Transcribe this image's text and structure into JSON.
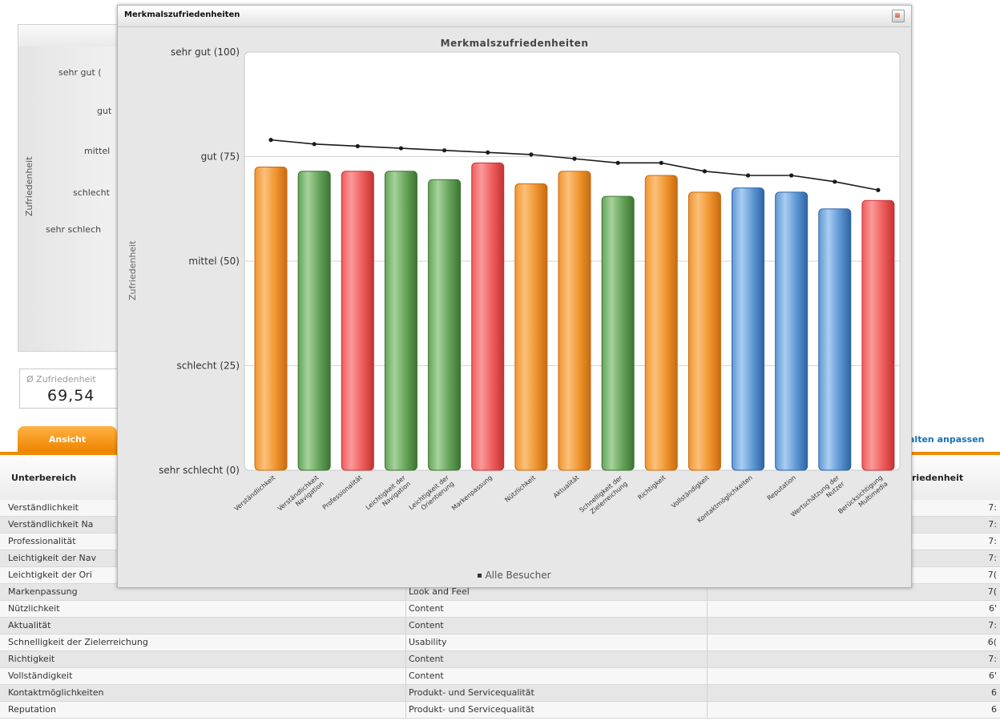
{
  "background": {
    "chart_panel": {
      "y_axis_label": "Zufriedenheit",
      "ticks": [
        "sehr gut (",
        "gut",
        "mittel",
        "schlecht",
        "sehr schlech"
      ]
    },
    "kpi": {
      "label": "Ø Zufriedenheit",
      "value": "69,54"
    },
    "tab_label": "Ansicht",
    "customize_link": "alten anpassen",
    "table": {
      "headers": [
        "Unterbereich",
        "riedenheit"
      ],
      "rows": [
        {
          "name": "Verständlichkeit",
          "category": "",
          "value": "7:"
        },
        {
          "name": "Verständlichkeit Na",
          "category": "",
          "value": "7:"
        },
        {
          "name": "Professionalität",
          "category": "",
          "value": "7:"
        },
        {
          "name": "Leichtigkeit der Nav",
          "category": "",
          "value": "7:"
        },
        {
          "name": "Leichtigkeit der Ori",
          "category": "",
          "value": "7("
        },
        {
          "name": "Markenpassung",
          "category": "Look and Feel",
          "value": "7("
        },
        {
          "name": "Nützlichkeit",
          "category": "Content",
          "value": "6'"
        },
        {
          "name": "Aktualität",
          "category": "Content",
          "value": "7:"
        },
        {
          "name": "Schnelligkeit der Zielerreichung",
          "category": "Usability",
          "value": "6("
        },
        {
          "name": "Richtigkeit",
          "category": "Content",
          "value": "7:"
        },
        {
          "name": "Vollständigkeit",
          "category": "Content",
          "value": "6'"
        },
        {
          "name": "Kontaktmöglichkeiten",
          "category": "Produkt- und Servicequalität",
          "value": "6"
        },
        {
          "name": "Reputation",
          "category": "Produkt- und Servicequalität",
          "value": "6"
        }
      ]
    }
  },
  "popup": {
    "window_title": "Merkmalszufriedenheiten",
    "close_icon": "close-icon"
  },
  "chart_data": {
    "type": "bar",
    "title": "Merkmalszufriedenheiten",
    "ylabel": "Zufriedenheit",
    "xlabel": "",
    "ylim": [
      0,
      100
    ],
    "yticks": [
      {
        "value": 100,
        "label": "sehr gut (100)"
      },
      {
        "value": 75,
        "label": "gut (75)"
      },
      {
        "value": 50,
        "label": "mittel (50)"
      },
      {
        "value": 25,
        "label": "schlecht (25)"
      },
      {
        "value": 0,
        "label": "sehr schlecht (0)"
      }
    ],
    "grid": true,
    "legend_position": "bottom",
    "categories": [
      [
        "Verständlichkeit"
      ],
      [
        "Verständlichkeit",
        "Navigation"
      ],
      [
        "Professionalität"
      ],
      [
        "Leichtigkeit der",
        "Navigation"
      ],
      [
        "Leichtigkeit der",
        "Orientierung"
      ],
      [
        "Markenpassung"
      ],
      [
        "Nützlichkeit"
      ],
      [
        "Aktualität"
      ],
      [
        "Schnelligkeit der",
        "Zielerreichung"
      ],
      [
        "Richtigkeit"
      ],
      [
        "Vollständigkeit"
      ],
      [
        "Kontaktmöglichkeiten"
      ],
      [
        "Reputation"
      ],
      [
        "Wertschätzung der",
        "Nutzer"
      ],
      [
        "Berücksichtigung",
        "Multimedia"
      ]
    ],
    "values": [
      72.5,
      71.5,
      71.5,
      71.5,
      69.5,
      73.5,
      68.5,
      71.5,
      65.5,
      70.5,
      66.5,
      67.5,
      66.5,
      62.5,
      64.5
    ],
    "bar_colors": [
      "orange",
      "green",
      "red",
      "green",
      "green",
      "red",
      "orange",
      "orange",
      "green",
      "orange",
      "orange",
      "blue",
      "blue",
      "blue",
      "red"
    ],
    "series": [
      {
        "name": "Alle Besucher",
        "type": "line",
        "values": [
          79,
          78,
          77.5,
          77,
          76.5,
          76,
          75.5,
          74.5,
          73.5,
          73.5,
          71.5,
          70.5,
          70.5,
          69,
          67
        ]
      }
    ],
    "palette": {
      "orange": {
        "light": "#fbc07a",
        "mid": "#f0952e",
        "dark": "#c86a10"
      },
      "green": {
        "light": "#a6d39b",
        "mid": "#66a35a",
        "dark": "#3c7431"
      },
      "red": {
        "light": "#fb9a9a",
        "mid": "#ee5c5c",
        "dark": "#c43232"
      },
      "blue": {
        "light": "#a9cdf1",
        "mid": "#5f98d4",
        "dark": "#2d64a4"
      }
    },
    "line_color": "#1a1a1a"
  }
}
